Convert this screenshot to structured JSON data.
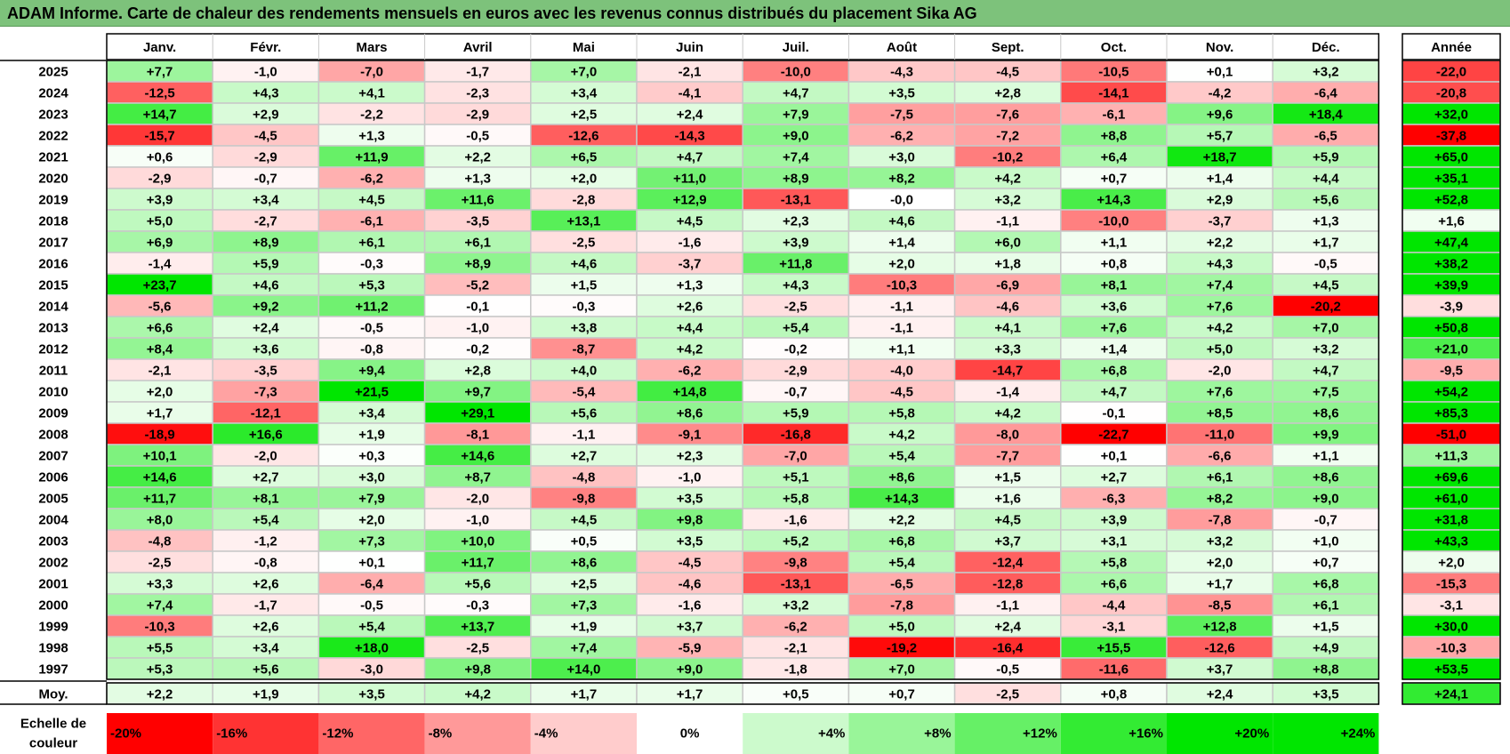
{
  "title": "ADAM Informe. Carte de chaleur des rendements mensuels en euros avec les revenus connus distribués du placement Sika AG",
  "chart_data": {
    "type": "heatmap",
    "title": "ADAM Informe. Carte de chaleur des rendements mensuels en euros avec les revenus connus distribués du placement Sika AG",
    "columns": [
      "Janv.",
      "Févr.",
      "Mars",
      "Avril",
      "Mai",
      "Juin",
      "Juil.",
      "Août",
      "Sept.",
      "Oct.",
      "Nov.",
      "Déc."
    ],
    "year_header": "Année",
    "rows": [
      {
        "label": "2025",
        "values": [
          "+7,7",
          "-1,0",
          "-7,0",
          "-1,7",
          "+7,0",
          "-2,1",
          "-10,0",
          "-4,3",
          "-4,5",
          "-10,5",
          "+0,1",
          "+3,2"
        ],
        "year": "-22,0"
      },
      {
        "label": "2024",
        "values": [
          "-12,5",
          "+4,3",
          "+4,1",
          "-2,3",
          "+3,4",
          "-4,1",
          "+4,7",
          "+3,5",
          "+2,8",
          "-14,1",
          "-4,2",
          "-6,4"
        ],
        "year": "-20,8"
      },
      {
        "label": "2023",
        "values": [
          "+14,7",
          "+2,9",
          "-2,2",
          "-2,9",
          "+2,5",
          "+2,4",
          "+7,9",
          "-7,5",
          "-7,6",
          "-6,1",
          "+9,6",
          "+18,4"
        ],
        "year": "+32,0"
      },
      {
        "label": "2022",
        "values": [
          "-15,7",
          "-4,5",
          "+1,3",
          "-0,5",
          "-12,6",
          "-14,3",
          "+9,0",
          "-6,2",
          "-7,2",
          "+8,8",
          "+5,7",
          "-6,5"
        ],
        "year": "-37,8"
      },
      {
        "label": "2021",
        "values": [
          "+0,6",
          "-2,9",
          "+11,9",
          "+2,2",
          "+6,5",
          "+4,7",
          "+7,4",
          "+3,0",
          "-10,2",
          "+6,4",
          "+18,7",
          "+5,9"
        ],
        "year": "+65,0"
      },
      {
        "label": "2020",
        "values": [
          "-2,9",
          "-0,7",
          "-6,2",
          "+1,3",
          "+2,0",
          "+11,0",
          "+8,9",
          "+8,2",
          "+4,2",
          "+0,7",
          "+1,4",
          "+4,4"
        ],
        "year": "+35,1"
      },
      {
        "label": "2019",
        "values": [
          "+3,9",
          "+3,4",
          "+4,5",
          "+11,6",
          "-2,8",
          "+12,9",
          "-13,1",
          "-0,0",
          "+3,2",
          "+14,3",
          "+2,9",
          "+5,6"
        ],
        "year": "+52,8"
      },
      {
        "label": "2018",
        "values": [
          "+5,0",
          "-2,7",
          "-6,1",
          "-3,5",
          "+13,1",
          "+4,5",
          "+2,3",
          "+4,6",
          "-1,1",
          "-10,0",
          "-3,7",
          "+1,3"
        ],
        "year": "+1,6"
      },
      {
        "label": "2017",
        "values": [
          "+6,9",
          "+8,9",
          "+6,1",
          "+6,1",
          "-2,5",
          "-1,6",
          "+3,9",
          "+1,4",
          "+6,0",
          "+1,1",
          "+2,2",
          "+1,7"
        ],
        "year": "+47,4"
      },
      {
        "label": "2016",
        "values": [
          "-1,4",
          "+5,9",
          "-0,3",
          "+8,9",
          "+4,6",
          "-3,7",
          "+11,8",
          "+2,0",
          "+1,8",
          "+0,8",
          "+4,3",
          "-0,5"
        ],
        "year": "+38,2"
      },
      {
        "label": "2015",
        "values": [
          "+23,7",
          "+4,6",
          "+5,3",
          "-5,2",
          "+1,5",
          "+1,3",
          "+4,3",
          "-10,3",
          "-6,9",
          "+8,1",
          "+7,4",
          "+4,5"
        ],
        "year": "+39,9"
      },
      {
        "label": "2014",
        "values": [
          "-5,6",
          "+9,2",
          "+11,2",
          "-0,1",
          "-0,3",
          "+2,6",
          "-2,5",
          "-1,1",
          "-4,6",
          "+3,6",
          "+7,6",
          "-20,2"
        ],
        "year": "-3,9"
      },
      {
        "label": "2013",
        "values": [
          "+6,6",
          "+2,4",
          "-0,5",
          "-1,0",
          "+3,8",
          "+4,4",
          "+5,4",
          "-1,1",
          "+4,1",
          "+7,6",
          "+4,2",
          "+7,0"
        ],
        "year": "+50,8"
      },
      {
        "label": "2012",
        "values": [
          "+8,4",
          "+3,6",
          "-0,8",
          "-0,2",
          "-8,7",
          "+4,2",
          "-0,2",
          "+1,1",
          "+3,3",
          "+1,4",
          "+5,0",
          "+3,2"
        ],
        "year": "+21,0"
      },
      {
        "label": "2011",
        "values": [
          "-2,1",
          "-3,5",
          "+9,4",
          "+2,8",
          "+4,0",
          "-6,2",
          "-2,9",
          "-4,0",
          "-14,7",
          "+6,8",
          "-2,0",
          "+4,7"
        ],
        "year": "-9,5"
      },
      {
        "label": "2010",
        "values": [
          "+2,0",
          "-7,3",
          "+21,5",
          "+9,7",
          "-5,4",
          "+14,8",
          "-0,7",
          "-4,5",
          "-1,4",
          "+4,7",
          "+7,6",
          "+7,5"
        ],
        "year": "+54,2"
      },
      {
        "label": "2009",
        "values": [
          "+1,7",
          "-12,1",
          "+3,4",
          "+29,1",
          "+5,6",
          "+8,6",
          "+5,9",
          "+5,8",
          "+4,2",
          "-0,1",
          "+8,5",
          "+8,6"
        ],
        "year": "+85,3"
      },
      {
        "label": "2008",
        "values": [
          "-18,9",
          "+16,6",
          "+1,9",
          "-8,1",
          "-1,1",
          "-9,1",
          "-16,8",
          "+4,2",
          "-8,0",
          "-22,7",
          "-11,0",
          "+9,9"
        ],
        "year": "-51,0"
      },
      {
        "label": "2007",
        "values": [
          "+10,1",
          "-2,0",
          "+0,3",
          "+14,6",
          "+2,7",
          "+2,3",
          "-7,0",
          "+5,4",
          "-7,7",
          "+0,1",
          "-6,6",
          "+1,1"
        ],
        "year": "+11,3"
      },
      {
        "label": "2006",
        "values": [
          "+14,6",
          "+2,7",
          "+3,0",
          "+8,7",
          "-4,8",
          "-1,0",
          "+5,1",
          "+8,6",
          "+1,5",
          "+2,7",
          "+6,1",
          "+8,6"
        ],
        "year": "+69,6"
      },
      {
        "label": "2005",
        "values": [
          "+11,7",
          "+8,1",
          "+7,9",
          "-2,0",
          "-9,8",
          "+3,5",
          "+5,8",
          "+14,3",
          "+1,6",
          "-6,3",
          "+8,2",
          "+9,0"
        ],
        "year": "+61,0"
      },
      {
        "label": "2004",
        "values": [
          "+8,0",
          "+5,4",
          "+2,0",
          "-1,0",
          "+4,5",
          "+9,8",
          "-1,6",
          "+2,2",
          "+4,5",
          "+3,9",
          "-7,8",
          "-0,7"
        ],
        "year": "+31,8"
      },
      {
        "label": "2003",
        "values": [
          "-4,8",
          "-1,2",
          "+7,3",
          "+10,0",
          "+0,5",
          "+3,5",
          "+5,2",
          "+6,8",
          "+3,7",
          "+3,1",
          "+3,2",
          "+1,0"
        ],
        "year": "+43,3"
      },
      {
        "label": "2002",
        "values": [
          "-2,5",
          "-0,8",
          "+0,1",
          "+11,7",
          "+8,6",
          "-4,5",
          "-9,8",
          "+5,4",
          "-12,4",
          "+5,8",
          "+2,0",
          "+0,7"
        ],
        "year": "+2,0"
      },
      {
        "label": "2001",
        "values": [
          "+3,3",
          "+2,6",
          "-6,4",
          "+5,6",
          "+2,5",
          "-4,6",
          "-13,1",
          "-6,5",
          "-12,8",
          "+6,6",
          "+1,7",
          "+6,8"
        ],
        "year": "-15,3"
      },
      {
        "label": "2000",
        "values": [
          "+7,4",
          "-1,7",
          "-0,5",
          "-0,3",
          "+7,3",
          "-1,6",
          "+3,2",
          "-7,8",
          "-1,1",
          "-4,4",
          "-8,5",
          "+6,1"
        ],
        "year": "-3,1"
      },
      {
        "label": "1999",
        "values": [
          "-10,3",
          "+2,6",
          "+5,4",
          "+13,7",
          "+1,9",
          "+3,7",
          "-6,2",
          "+5,0",
          "+2,4",
          "-3,1",
          "+12,8",
          "+1,5"
        ],
        "year": "+30,0"
      },
      {
        "label": "1998",
        "values": [
          "+5,5",
          "+3,4",
          "+18,0",
          "-2,5",
          "+7,4",
          "-5,9",
          "-2,1",
          "-19,2",
          "-16,4",
          "+15,5",
          "-12,6",
          "+4,9"
        ],
        "year": "-10,3"
      },
      {
        "label": "1997",
        "values": [
          "+5,3",
          "+5,6",
          "-3,0",
          "+9,8",
          "+14,0",
          "+9,0",
          "-1,8",
          "+7,0",
          "-0,5",
          "-11,6",
          "+3,7",
          "+8,8"
        ],
        "year": "+53,5"
      }
    ],
    "average": {
      "label": "Moy.",
      "values": [
        "+2,2",
        "+1,9",
        "+3,5",
        "+4,2",
        "+1,7",
        "+1,7",
        "+0,5",
        "+0,7",
        "-2,5",
        "+0,8",
        "+2,4",
        "+3,5"
      ],
      "year": "+24,1"
    },
    "legend": {
      "label_line1": "Echelle de",
      "label_line2": "couleur",
      "stops": [
        "-20%",
        "-16%",
        "-12%",
        "-8%",
        "-4%",
        "0%",
        "+4%",
        "+8%",
        "+12%",
        "+16%",
        "+20%",
        "+24%"
      ],
      "stop_values": [
        -20,
        -16,
        -12,
        -8,
        -4,
        0,
        4,
        8,
        12,
        16,
        20,
        24
      ]
    },
    "colors": {
      "negative_max": "#ff0000",
      "neutral": "#ffffff",
      "positive_max": "#00e000",
      "title_bar": "#7dc27b",
      "grid": "#c8c8c8"
    }
  }
}
